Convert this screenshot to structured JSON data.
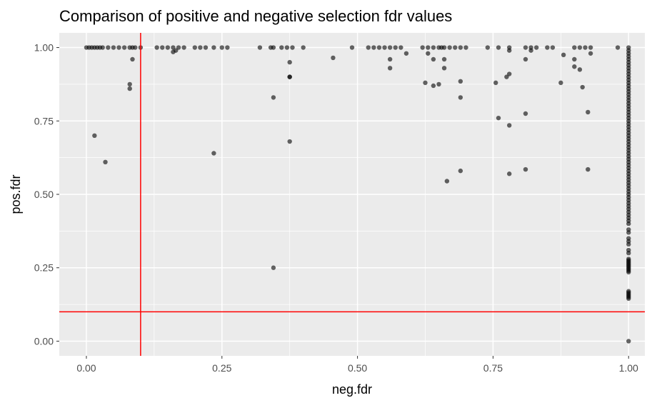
{
  "chart_data": {
    "type": "scatter",
    "title": "Comparison of positive and negative selection fdr values",
    "xlabel": "neg.fdr",
    "ylabel": "pos.fdr",
    "xlim": [
      -0.05,
      1.03
    ],
    "ylim": [
      -0.05,
      1.05
    ],
    "x_ticks": [
      0.0,
      0.25,
      0.5,
      0.75,
      1.0
    ],
    "x_tick_labels": [
      "0.00",
      "0.25",
      "0.50",
      "0.75",
      "1.00"
    ],
    "y_ticks": [
      0.0,
      0.25,
      0.5,
      0.75,
      1.0
    ],
    "y_tick_labels": [
      "0.00",
      "0.25",
      "0.50",
      "0.75",
      "1.00"
    ],
    "grid": true,
    "colors": {
      "panel_background": "#ebebeb",
      "grid_line": "#ffffff",
      "point": "#000000",
      "threshold_line": "#ff0000"
    },
    "threshold_lines": {
      "x": 0.1,
      "y": 0.1
    },
    "points": [
      {
        "x": 0.0,
        "y": 1.0
      },
      {
        "x": 0.005,
        "y": 1.0
      },
      {
        "x": 0.01,
        "y": 1.0
      },
      {
        "x": 0.015,
        "y": 1.0
      },
      {
        "x": 0.02,
        "y": 1.0
      },
      {
        "x": 0.025,
        "y": 1.0
      },
      {
        "x": 0.03,
        "y": 1.0
      },
      {
        "x": 0.04,
        "y": 1.0
      },
      {
        "x": 0.05,
        "y": 1.0
      },
      {
        "x": 0.06,
        "y": 1.0
      },
      {
        "x": 0.07,
        "y": 1.0
      },
      {
        "x": 0.08,
        "y": 1.0
      },
      {
        "x": 0.085,
        "y": 1.0
      },
      {
        "x": 0.09,
        "y": 1.0
      },
      {
        "x": 0.1,
        "y": 1.0
      },
      {
        "x": 0.13,
        "y": 1.0
      },
      {
        "x": 0.14,
        "y": 1.0
      },
      {
        "x": 0.15,
        "y": 1.0
      },
      {
        "x": 0.16,
        "y": 1.0
      },
      {
        "x": 0.17,
        "y": 1.0
      },
      {
        "x": 0.18,
        "y": 1.0
      },
      {
        "x": 0.2,
        "y": 1.0
      },
      {
        "x": 0.21,
        "y": 1.0
      },
      {
        "x": 0.22,
        "y": 1.0
      },
      {
        "x": 0.235,
        "y": 1.0
      },
      {
        "x": 0.25,
        "y": 1.0
      },
      {
        "x": 0.26,
        "y": 1.0
      },
      {
        "x": 0.32,
        "y": 1.0
      },
      {
        "x": 0.34,
        "y": 1.0
      },
      {
        "x": 0.345,
        "y": 1.0
      },
      {
        "x": 0.36,
        "y": 1.0
      },
      {
        "x": 0.37,
        "y": 1.0
      },
      {
        "x": 0.38,
        "y": 1.0
      },
      {
        "x": 0.4,
        "y": 1.0
      },
      {
        "x": 0.49,
        "y": 1.0
      },
      {
        "x": 0.52,
        "y": 1.0
      },
      {
        "x": 0.53,
        "y": 1.0
      },
      {
        "x": 0.54,
        "y": 1.0
      },
      {
        "x": 0.55,
        "y": 1.0
      },
      {
        "x": 0.56,
        "y": 1.0
      },
      {
        "x": 0.57,
        "y": 1.0
      },
      {
        "x": 0.58,
        "y": 1.0
      },
      {
        "x": 0.62,
        "y": 1.0
      },
      {
        "x": 0.63,
        "y": 1.0
      },
      {
        "x": 0.64,
        "y": 1.0
      },
      {
        "x": 0.65,
        "y": 1.0
      },
      {
        "x": 0.655,
        "y": 1.0
      },
      {
        "x": 0.66,
        "y": 1.0
      },
      {
        "x": 0.67,
        "y": 1.0
      },
      {
        "x": 0.68,
        "y": 1.0
      },
      {
        "x": 0.69,
        "y": 1.0
      },
      {
        "x": 0.7,
        "y": 1.0
      },
      {
        "x": 0.74,
        "y": 1.0
      },
      {
        "x": 0.76,
        "y": 1.0
      },
      {
        "x": 0.78,
        "y": 1.0
      },
      {
        "x": 0.81,
        "y": 1.0
      },
      {
        "x": 0.82,
        "y": 1.0
      },
      {
        "x": 0.83,
        "y": 1.0
      },
      {
        "x": 0.85,
        "y": 1.0
      },
      {
        "x": 0.86,
        "y": 1.0
      },
      {
        "x": 0.9,
        "y": 1.0
      },
      {
        "x": 0.91,
        "y": 1.0
      },
      {
        "x": 0.92,
        "y": 1.0
      },
      {
        "x": 0.93,
        "y": 1.0
      },
      {
        "x": 0.98,
        "y": 1.0
      },
      {
        "x": 0.16,
        "y": 0.985
      },
      {
        "x": 0.165,
        "y": 0.99
      },
      {
        "x": 0.78,
        "y": 0.99
      },
      {
        "x": 0.82,
        "y": 0.99
      },
      {
        "x": 0.88,
        "y": 0.975
      },
      {
        "x": 0.93,
        "y": 0.98
      },
      {
        "x": 0.455,
        "y": 0.965
      },
      {
        "x": 0.56,
        "y": 0.96
      },
      {
        "x": 0.59,
        "y": 0.98
      },
      {
        "x": 0.63,
        "y": 0.98
      },
      {
        "x": 0.64,
        "y": 0.96
      },
      {
        "x": 0.66,
        "y": 0.96
      },
      {
        "x": 0.81,
        "y": 0.96
      },
      {
        "x": 0.9,
        "y": 0.96
      },
      {
        "x": 0.085,
        "y": 0.96
      },
      {
        "x": 0.375,
        "y": 0.95
      },
      {
        "x": 0.56,
        "y": 0.93
      },
      {
        "x": 0.66,
        "y": 0.93
      },
      {
        "x": 0.9,
        "y": 0.935
      },
      {
        "x": 0.91,
        "y": 0.925
      },
      {
        "x": 0.375,
        "y": 0.9
      },
      {
        "x": 0.375,
        "y": 0.9
      },
      {
        "x": 0.78,
        "y": 0.91
      },
      {
        "x": 0.775,
        "y": 0.9
      },
      {
        "x": 0.08,
        "y": 0.875
      },
      {
        "x": 0.08,
        "y": 0.86
      },
      {
        "x": 0.625,
        "y": 0.88
      },
      {
        "x": 0.64,
        "y": 0.87
      },
      {
        "x": 0.65,
        "y": 0.875
      },
      {
        "x": 0.69,
        "y": 0.885
      },
      {
        "x": 0.755,
        "y": 0.88
      },
      {
        "x": 0.875,
        "y": 0.88
      },
      {
        "x": 0.915,
        "y": 0.865
      },
      {
        "x": 0.345,
        "y": 0.83
      },
      {
        "x": 0.69,
        "y": 0.83
      },
      {
        "x": 0.81,
        "y": 0.775
      },
      {
        "x": 0.925,
        "y": 0.78
      },
      {
        "x": 0.76,
        "y": 0.76
      },
      {
        "x": 0.78,
        "y": 0.735
      },
      {
        "x": 0.015,
        "y": 0.7
      },
      {
        "x": 0.375,
        "y": 0.68
      },
      {
        "x": 0.235,
        "y": 0.64
      },
      {
        "x": 0.035,
        "y": 0.61
      },
      {
        "x": 0.81,
        "y": 0.585
      },
      {
        "x": 0.925,
        "y": 0.585
      },
      {
        "x": 0.69,
        "y": 0.58
      },
      {
        "x": 0.78,
        "y": 0.57
      },
      {
        "x": 0.665,
        "y": 0.545
      },
      {
        "x": 0.345,
        "y": 0.25
      },
      {
        "x": 1.0,
        "y": 1.0
      },
      {
        "x": 1.0,
        "y": 0.99
      },
      {
        "x": 1.0,
        "y": 0.98
      },
      {
        "x": 1.0,
        "y": 0.97
      },
      {
        "x": 1.0,
        "y": 0.96
      },
      {
        "x": 1.0,
        "y": 0.95
      },
      {
        "x": 1.0,
        "y": 0.94
      },
      {
        "x": 1.0,
        "y": 0.93
      },
      {
        "x": 1.0,
        "y": 0.92
      },
      {
        "x": 1.0,
        "y": 0.91
      },
      {
        "x": 1.0,
        "y": 0.9
      },
      {
        "x": 1.0,
        "y": 0.89
      },
      {
        "x": 1.0,
        "y": 0.88
      },
      {
        "x": 1.0,
        "y": 0.87
      },
      {
        "x": 1.0,
        "y": 0.86
      },
      {
        "x": 1.0,
        "y": 0.85
      },
      {
        "x": 1.0,
        "y": 0.84
      },
      {
        "x": 1.0,
        "y": 0.83
      },
      {
        "x": 1.0,
        "y": 0.82
      },
      {
        "x": 1.0,
        "y": 0.81
      },
      {
        "x": 1.0,
        "y": 0.8
      },
      {
        "x": 1.0,
        "y": 0.79
      },
      {
        "x": 1.0,
        "y": 0.78
      },
      {
        "x": 1.0,
        "y": 0.77
      },
      {
        "x": 1.0,
        "y": 0.76
      },
      {
        "x": 1.0,
        "y": 0.75
      },
      {
        "x": 1.0,
        "y": 0.74
      },
      {
        "x": 1.0,
        "y": 0.73
      },
      {
        "x": 1.0,
        "y": 0.72
      },
      {
        "x": 1.0,
        "y": 0.71
      },
      {
        "x": 1.0,
        "y": 0.7
      },
      {
        "x": 1.0,
        "y": 0.69
      },
      {
        "x": 1.0,
        "y": 0.68
      },
      {
        "x": 1.0,
        "y": 0.67
      },
      {
        "x": 1.0,
        "y": 0.66
      },
      {
        "x": 1.0,
        "y": 0.65
      },
      {
        "x": 1.0,
        "y": 0.64
      },
      {
        "x": 1.0,
        "y": 0.63
      },
      {
        "x": 1.0,
        "y": 0.62
      },
      {
        "x": 1.0,
        "y": 0.61
      },
      {
        "x": 1.0,
        "y": 0.6
      },
      {
        "x": 1.0,
        "y": 0.59
      },
      {
        "x": 1.0,
        "y": 0.58
      },
      {
        "x": 1.0,
        "y": 0.57
      },
      {
        "x": 1.0,
        "y": 0.56
      },
      {
        "x": 1.0,
        "y": 0.55
      },
      {
        "x": 1.0,
        "y": 0.54
      },
      {
        "x": 1.0,
        "y": 0.53
      },
      {
        "x": 1.0,
        "y": 0.52
      },
      {
        "x": 1.0,
        "y": 0.51
      },
      {
        "x": 1.0,
        "y": 0.5
      },
      {
        "x": 1.0,
        "y": 0.49
      },
      {
        "x": 1.0,
        "y": 0.48
      },
      {
        "x": 1.0,
        "y": 0.47
      },
      {
        "x": 1.0,
        "y": 0.46
      },
      {
        "x": 1.0,
        "y": 0.45
      },
      {
        "x": 1.0,
        "y": 0.44
      },
      {
        "x": 1.0,
        "y": 0.43
      },
      {
        "x": 1.0,
        "y": 0.42
      },
      {
        "x": 1.0,
        "y": 0.41
      },
      {
        "x": 1.0,
        "y": 0.4
      },
      {
        "x": 1.0,
        "y": 0.38
      },
      {
        "x": 1.0,
        "y": 0.37
      },
      {
        "x": 1.0,
        "y": 0.35
      },
      {
        "x": 1.0,
        "y": 0.34
      },
      {
        "x": 1.0,
        "y": 0.33
      },
      {
        "x": 1.0,
        "y": 0.31
      },
      {
        "x": 1.0,
        "y": 0.3
      },
      {
        "x": 1.0,
        "y": 0.28
      },
      {
        "x": 1.0,
        "y": 0.275
      },
      {
        "x": 1.0,
        "y": 0.27
      },
      {
        "x": 1.0,
        "y": 0.265
      },
      {
        "x": 1.0,
        "y": 0.26
      },
      {
        "x": 1.0,
        "y": 0.255
      },
      {
        "x": 1.0,
        "y": 0.25
      },
      {
        "x": 1.0,
        "y": 0.245
      },
      {
        "x": 1.0,
        "y": 0.24
      },
      {
        "x": 1.0,
        "y": 0.235
      },
      {
        "x": 1.0,
        "y": 0.17
      },
      {
        "x": 1.0,
        "y": 0.165
      },
      {
        "x": 1.0,
        "y": 0.16
      },
      {
        "x": 1.0,
        "y": 0.155
      },
      {
        "x": 1.0,
        "y": 0.15
      },
      {
        "x": 1.0,
        "y": 0.145
      },
      {
        "x": 1.0,
        "y": 0.0
      }
    ]
  }
}
